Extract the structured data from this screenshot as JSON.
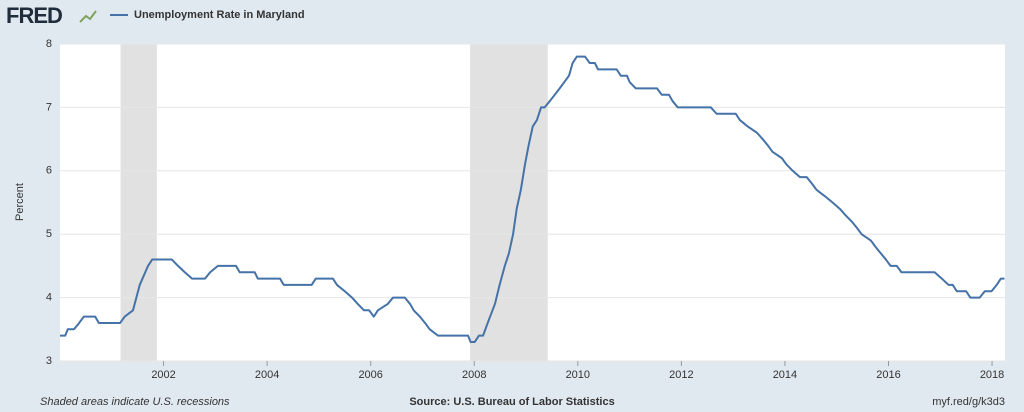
{
  "logo": "FRED",
  "footer": {
    "note": "Shaded areas indicate U.S. recessions",
    "source": "Source: U.S. Bureau of Labor Statistics",
    "link": "myf.red/g/k3d3"
  },
  "chart_data": {
    "type": "line",
    "y_label": "Percent",
    "x": [
      2000.0,
      2000.1,
      2000.15,
      2000.27,
      2000.37,
      2000.46,
      2000.68,
      2000.75,
      2001.16,
      2001.25,
      2001.41,
      2001.54,
      2001.7,
      2001.78,
      2002.16,
      2002.28,
      2002.41,
      2002.55,
      2002.8,
      2002.9,
      2003.05,
      2003.4,
      2003.47,
      2003.76,
      2003.82,
      2004.25,
      2004.32,
      2004.86,
      2004.94,
      2005.27,
      2005.35,
      2005.5,
      2005.64,
      2005.75,
      2005.87,
      2005.97,
      2006.06,
      2006.14,
      2006.33,
      2006.43,
      2006.66,
      2006.76,
      2006.83,
      2006.95,
      2007.05,
      2007.14,
      2007.3,
      2007.88,
      2007.93,
      2008.01,
      2008.09,
      2008.17,
      2008.26,
      2008.4,
      2008.49,
      2008.59,
      2008.67,
      2008.75,
      2008.82,
      2008.9,
      2008.98,
      2009.05,
      2009.13,
      2009.21,
      2009.29,
      2009.36,
      2009.46,
      2009.65,
      2009.83,
      2009.9,
      2009.98,
      2010.14,
      2010.23,
      2010.33,
      2010.39,
      2010.75,
      2010.83,
      2010.95,
      2011.0,
      2011.12,
      2011.53,
      2011.62,
      2011.76,
      2011.83,
      2011.93,
      2012.57,
      2012.68,
      2013.05,
      2013.13,
      2013.28,
      2013.46,
      2013.57,
      2013.67,
      2013.76,
      2013.94,
      2014.03,
      2014.15,
      2014.29,
      2014.42,
      2014.52,
      2014.61,
      2014.77,
      2014.92,
      2015.06,
      2015.17,
      2015.29,
      2015.39,
      2015.48,
      2015.66,
      2015.75,
      2015.85,
      2015.95,
      2016.04,
      2016.16,
      2016.25,
      2016.89,
      2017.03,
      2017.16,
      2017.24,
      2017.32,
      2017.5,
      2017.58,
      2017.76,
      2017.86,
      2017.99,
      2018.09,
      2018.17,
      2018.24
    ],
    "series": [
      {
        "name": "Unemployment Rate in Maryland",
        "color": "#4572a7",
        "values": [
          3.4,
          3.4,
          3.5,
          3.5,
          3.6,
          3.7,
          3.7,
          3.6,
          3.6,
          3.7,
          3.8,
          4.2,
          4.5,
          4.6,
          4.6,
          4.5,
          4.4,
          4.3,
          4.3,
          4.4,
          4.5,
          4.5,
          4.4,
          4.4,
          4.3,
          4.3,
          4.2,
          4.2,
          4.3,
          4.3,
          4.2,
          4.1,
          4.0,
          3.9,
          3.8,
          3.8,
          3.7,
          3.8,
          3.9,
          4.0,
          4.0,
          3.9,
          3.8,
          3.7,
          3.6,
          3.5,
          3.4,
          3.4,
          3.3,
          3.3,
          3.4,
          3.4,
          3.6,
          3.9,
          4.2,
          4.5,
          4.7,
          5.0,
          5.4,
          5.7,
          6.1,
          6.4,
          6.7,
          6.8,
          7.0,
          7.0,
          7.1,
          7.3,
          7.5,
          7.7,
          7.8,
          7.8,
          7.7,
          7.7,
          7.6,
          7.6,
          7.5,
          7.5,
          7.4,
          7.3,
          7.3,
          7.2,
          7.2,
          7.1,
          7.0,
          7.0,
          6.9,
          6.9,
          6.8,
          6.7,
          6.6,
          6.5,
          6.4,
          6.3,
          6.2,
          6.1,
          6.0,
          5.9,
          5.9,
          5.8,
          5.7,
          5.6,
          5.5,
          5.4,
          5.3,
          5.2,
          5.1,
          5.0,
          4.9,
          4.8,
          4.7,
          4.6,
          4.5,
          4.5,
          4.4,
          4.4,
          4.3,
          4.2,
          4.2,
          4.1,
          4.1,
          4.0,
          4.0,
          4.1,
          4.1,
          4.2,
          4.3,
          4.3
        ]
      }
    ],
    "recessions": [
      [
        2001.17,
        2001.87
      ],
      [
        2007.92,
        2009.42
      ]
    ],
    "recession_color": "#e1e1e1",
    "xlim": [
      2000,
      2018.25
    ],
    "xticks": [
      2002,
      2004,
      2006,
      2008,
      2010,
      2012,
      2014,
      2016,
      2018
    ],
    "ylim": [
      3,
      8
    ],
    "yticks": [
      3,
      4,
      5,
      6,
      7,
      8
    ],
    "grid": true
  }
}
